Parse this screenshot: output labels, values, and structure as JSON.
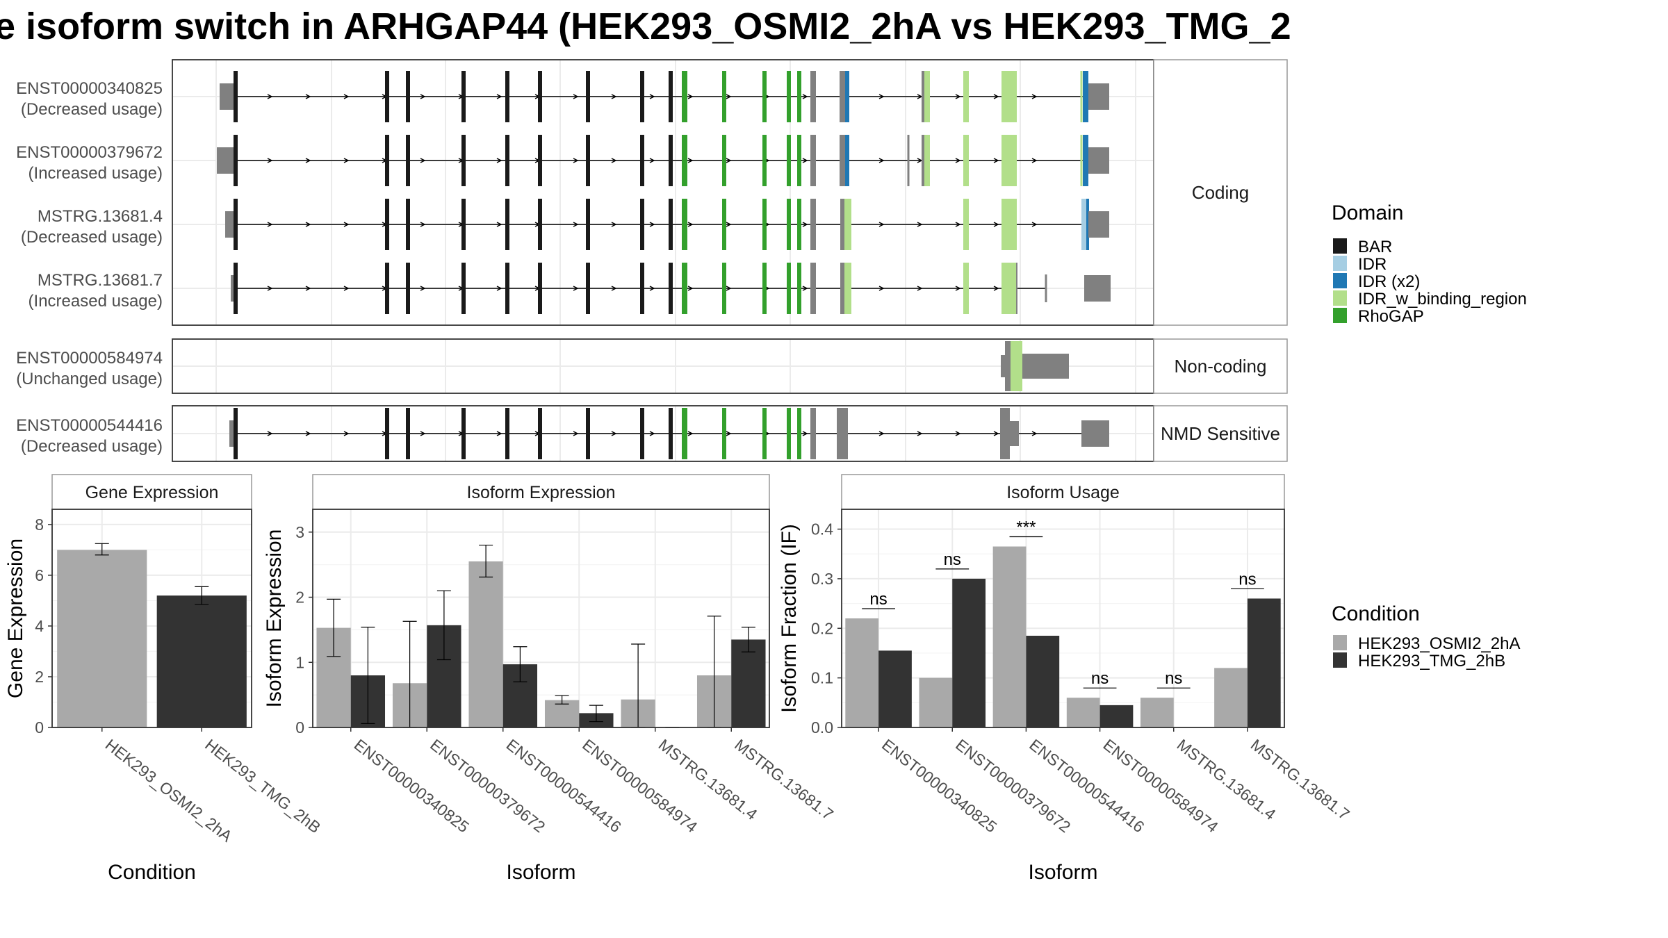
{
  "title": "e isoform switch in ARHGAP44 (HEK293_OSMI2_2hA vs HEK293_TMG_2",
  "colors": {
    "BAR": "#1a1a1a",
    "IDR": "#a6cee3",
    "IDR (x2)": "#1f78b4",
    "IDR_w_binding_region": "#b2df8a",
    "RhoGAP": "#33a02c",
    "untranslated": "#808080",
    "cond1": "#a9a9a9",
    "cond2": "#333333"
  },
  "chart_data": [
    {
      "type": "isoform_structure",
      "x_axis": "genomic position (no ticks printed)",
      "panels": [
        {
          "label": "Coding",
          "isoforms": [
            {
              "id": "ENST00000340825",
              "usage": "(Decreased usage)"
            },
            {
              "id": "ENST00000379672",
              "usage": "(Increased usage)"
            },
            {
              "id": "MSTRG.13681.4",
              "usage": "(Decreased usage)"
            },
            {
              "id": "MSTRG.13681.7",
              "usage": "(Increased usage)"
            }
          ]
        },
        {
          "label": "Non-coding",
          "isoforms": [
            {
              "id": "ENST00000584974",
              "usage": "(Unchanged usage)"
            }
          ]
        },
        {
          "label": "NMD Sensitive",
          "isoforms": [
            {
              "id": "ENST00000544416",
              "usage": "(Decreased usage)"
            }
          ]
        }
      ],
      "legend": {
        "title": "Domain",
        "items": [
          "BAR",
          "IDR",
          "IDR (x2)",
          "IDR_w_binding_region",
          "RhoGAP"
        ]
      }
    },
    {
      "type": "bar",
      "title": "Gene Expression",
      "xlabel": "Condition",
      "ylabel": "Gene Expression",
      "ylim": [
        0,
        8.6
      ],
      "yticks": [
        0,
        2,
        4,
        6,
        8
      ],
      "categories": [
        "HEK293_OSMI2_2hA",
        "HEK293_TMG_2hB"
      ],
      "values": [
        7.0,
        5.2
      ],
      "errors": [
        [
          6.8,
          7.25
        ],
        [
          4.85,
          5.55
        ]
      ]
    },
    {
      "type": "bar",
      "title": "Isoform Expression",
      "xlabel": "Isoform",
      "ylabel": "Isoform Expression",
      "ylim": [
        0,
        3.35
      ],
      "yticks": [
        0,
        1,
        2,
        3
      ],
      "categories": [
        "ENST00000340825",
        "ENST00000379672",
        "ENST00000544416",
        "ENST00000584974",
        "MSTRG.13681.4",
        "MSTRG.13681.7"
      ],
      "series": [
        {
          "name": "HEK293_OSMI2_2hA",
          "values": [
            1.53,
            0.68,
            2.55,
            0.42,
            0.43,
            0.8
          ],
          "errors": [
            [
              1.09,
              1.97
            ],
            [
              0.0,
              1.63
            ],
            [
              2.31,
              2.8
            ],
            [
              0.36,
              0.49
            ],
            [
              0.0,
              1.28
            ],
            [
              0.0,
              1.71
            ]
          ]
        },
        {
          "name": "HEK293_TMG_2hB",
          "values": [
            0.8,
            1.57,
            0.97,
            0.22,
            0.0,
            1.35
          ],
          "errors": [
            [
              0.06,
              1.54
            ],
            [
              1.04,
              2.1
            ],
            [
              0.7,
              1.24
            ],
            [
              0.09,
              0.34
            ],
            [
              0.0,
              0.0
            ],
            [
              1.16,
              1.54
            ]
          ]
        }
      ]
    },
    {
      "type": "bar",
      "title": "Isoform Usage",
      "xlabel": "Isoform",
      "ylabel": "Isoform Fraction (IF)",
      "ylim": [
        0,
        0.44
      ],
      "yticks": [
        "0.0",
        "0.1",
        "0.2",
        "0.3",
        "0.4"
      ],
      "categories": [
        "ENST00000340825",
        "ENST00000379672",
        "ENST00000544416",
        "ENST00000584974",
        "MSTRG.13681.4",
        "MSTRG.13681.7"
      ],
      "series": [
        {
          "name": "HEK293_OSMI2_2hA",
          "values": [
            0.22,
            0.1,
            0.365,
            0.06,
            0.06,
            0.12
          ]
        },
        {
          "name": "HEK293_TMG_2hB",
          "values": [
            0.155,
            0.3,
            0.185,
            0.045,
            0.0,
            0.26
          ]
        }
      ],
      "significance": [
        "ns",
        "ns",
        "***",
        "ns",
        "ns",
        "ns"
      ]
    }
  ],
  "condition_legend": {
    "title": "Condition",
    "items": [
      "HEK293_OSMI2_2hA",
      "HEK293_TMG_2hB"
    ]
  }
}
